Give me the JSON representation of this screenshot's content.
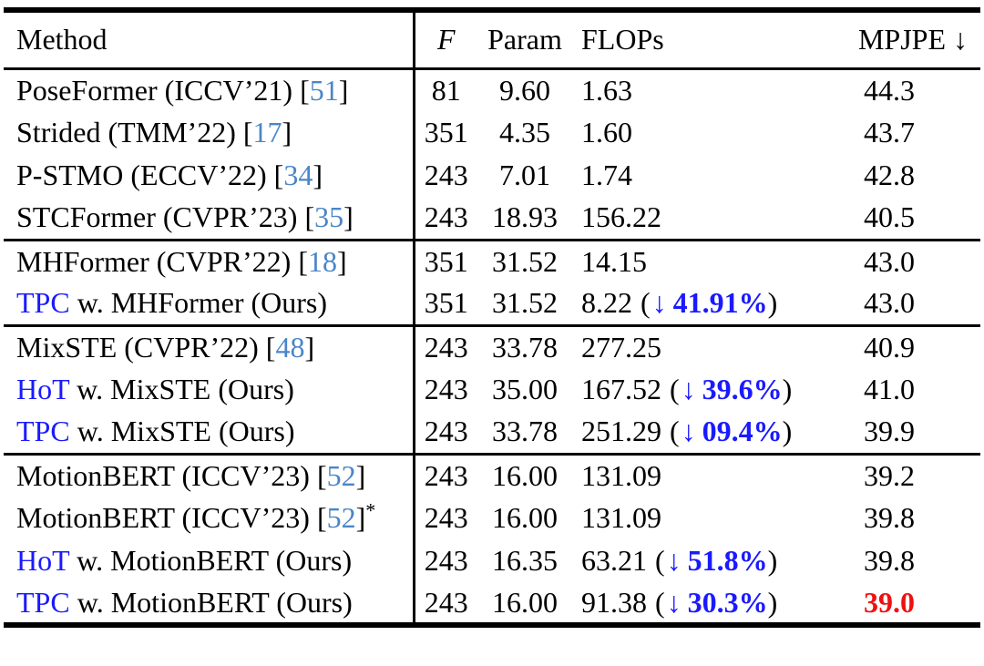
{
  "table": {
    "header": {
      "method": "Method",
      "f": "F",
      "param": "Param",
      "flops": "FLOPs",
      "mpjpe": "MPJPE"
    },
    "groups": [
      {
        "rows": [
          {
            "prefix": "",
            "name": "PoseFormer (ICCV’21) ",
            "cite": "51",
            "star": false,
            "f": "81",
            "param": "9.60",
            "flops": "1.63",
            "reduction": null,
            "mpjpe": "44.3",
            "highlight": false
          },
          {
            "prefix": "",
            "name": "Strided (TMM’22) ",
            "cite": "17",
            "star": false,
            "f": "351",
            "param": "4.35",
            "flops": "1.60",
            "reduction": null,
            "mpjpe": "43.7",
            "highlight": false
          },
          {
            "prefix": "",
            "name": "P-STMO (ECCV’22) ",
            "cite": "34",
            "star": false,
            "f": "243",
            "param": "7.01",
            "flops": "1.74",
            "reduction": null,
            "mpjpe": "42.8",
            "highlight": false
          },
          {
            "prefix": "",
            "name": "STCFormer (CVPR’23) ",
            "cite": "35",
            "star": false,
            "f": "243",
            "param": "18.93",
            "flops": "156.22",
            "reduction": null,
            "mpjpe": "40.5",
            "highlight": false
          }
        ]
      },
      {
        "rows": [
          {
            "prefix": "",
            "name": "MHFormer (CVPR’22) ",
            "cite": "18",
            "star": false,
            "f": "351",
            "param": "31.52",
            "flops": "14.15",
            "reduction": null,
            "mpjpe": "43.0",
            "highlight": false
          },
          {
            "prefix": "TPC",
            "name": " w. MHFormer (Ours)",
            "cite": null,
            "star": false,
            "f": "351",
            "param": "31.52",
            "flops": "8.22",
            "reduction": "41.91%",
            "mpjpe": "43.0",
            "highlight": false
          }
        ]
      },
      {
        "rows": [
          {
            "prefix": "",
            "name": "MixSTE (CVPR’22) ",
            "cite": "48",
            "star": false,
            "f": "243",
            "param": "33.78",
            "flops": "277.25",
            "reduction": null,
            "mpjpe": "40.9",
            "highlight": false
          },
          {
            "prefix": "HoT",
            "name": " w. MixSTE (Ours)",
            "cite": null,
            "star": false,
            "f": "243",
            "param": "35.00",
            "flops": "167.52",
            "reduction": "39.6%",
            "mpjpe": "41.0",
            "highlight": false
          },
          {
            "prefix": "TPC",
            "name": " w. MixSTE (Ours)",
            "cite": null,
            "star": false,
            "f": "243",
            "param": "33.78",
            "flops": "251.29",
            "reduction": "09.4%",
            "mpjpe": "39.9",
            "highlight": false
          }
        ]
      },
      {
        "rows": [
          {
            "prefix": "",
            "name": "MotionBERT (ICCV’23) ",
            "cite": "52",
            "star": false,
            "f": "243",
            "param": "16.00",
            "flops": "131.09",
            "reduction": null,
            "mpjpe": "39.2",
            "highlight": false
          },
          {
            "prefix": "",
            "name": "MotionBERT (ICCV’23) ",
            "cite": "52",
            "star": true,
            "f": "243",
            "param": "16.00",
            "flops": "131.09",
            "reduction": null,
            "mpjpe": "39.8",
            "highlight": false
          },
          {
            "prefix": "HoT",
            "name": " w. MotionBERT (Ours)",
            "cite": null,
            "star": false,
            "f": "243",
            "param": "16.35",
            "flops": "63.21",
            "reduction": "51.8%",
            "mpjpe": "39.8",
            "highlight": false
          },
          {
            "prefix": "TPC",
            "name": " w. MotionBERT (Ours)",
            "cite": null,
            "star": false,
            "f": "243",
            "param": "16.00",
            "flops": "91.38",
            "reduction": "30.3%",
            "mpjpe": "39.0",
            "highlight": true
          }
        ]
      }
    ]
  },
  "symbols": {
    "down_arrow": "↓",
    "bracket_open": "[",
    "bracket_close": "]",
    "paren_open": "(",
    "paren_close": ")",
    "asterisk": "*"
  },
  "colors": {
    "cite": "#4a86c8",
    "accent": "#1a1aff",
    "best": "#ee1111"
  }
}
